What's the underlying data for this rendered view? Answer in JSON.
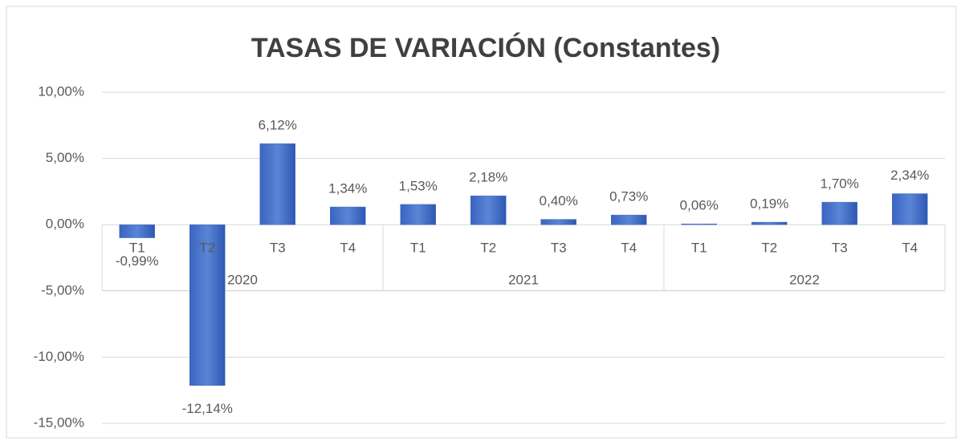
{
  "chart_data": {
    "type": "bar",
    "title": "TASAS DE VARIACIÓN (Constantes)",
    "categories": [
      "T1",
      "T2",
      "T3",
      "T4",
      "T1",
      "T2",
      "T3",
      "T4",
      "T1",
      "T2",
      "T3",
      "T4"
    ],
    "groups": [
      "2020",
      "2021",
      "2022"
    ],
    "values": [
      -0.99,
      -12.14,
      6.12,
      1.34,
      1.53,
      2.18,
      0.4,
      0.73,
      0.06,
      0.19,
      1.7,
      2.34
    ],
    "value_labels": [
      "-0,99%",
      "-12,14%",
      "6,12%",
      "1,34%",
      "1,53%",
      "2,18%",
      "0,40%",
      "0,73%",
      "0,06%",
      "0,19%",
      "1,70%",
      "2,34%"
    ],
    "color": "#4472c4",
    "ylim": [
      -15,
      10
    ],
    "yticks": [
      {
        "value": -15,
        "label": "-15,00%"
      },
      {
        "value": -10,
        "label": "-10,00%"
      },
      {
        "value": -5,
        "label": "-5,00%"
      },
      {
        "value": 0,
        "label": "0,00%"
      },
      {
        "value": 5,
        "label": "5,00%"
      },
      {
        "value": 10,
        "label": "10,00%"
      }
    ],
    "grid": true
  }
}
